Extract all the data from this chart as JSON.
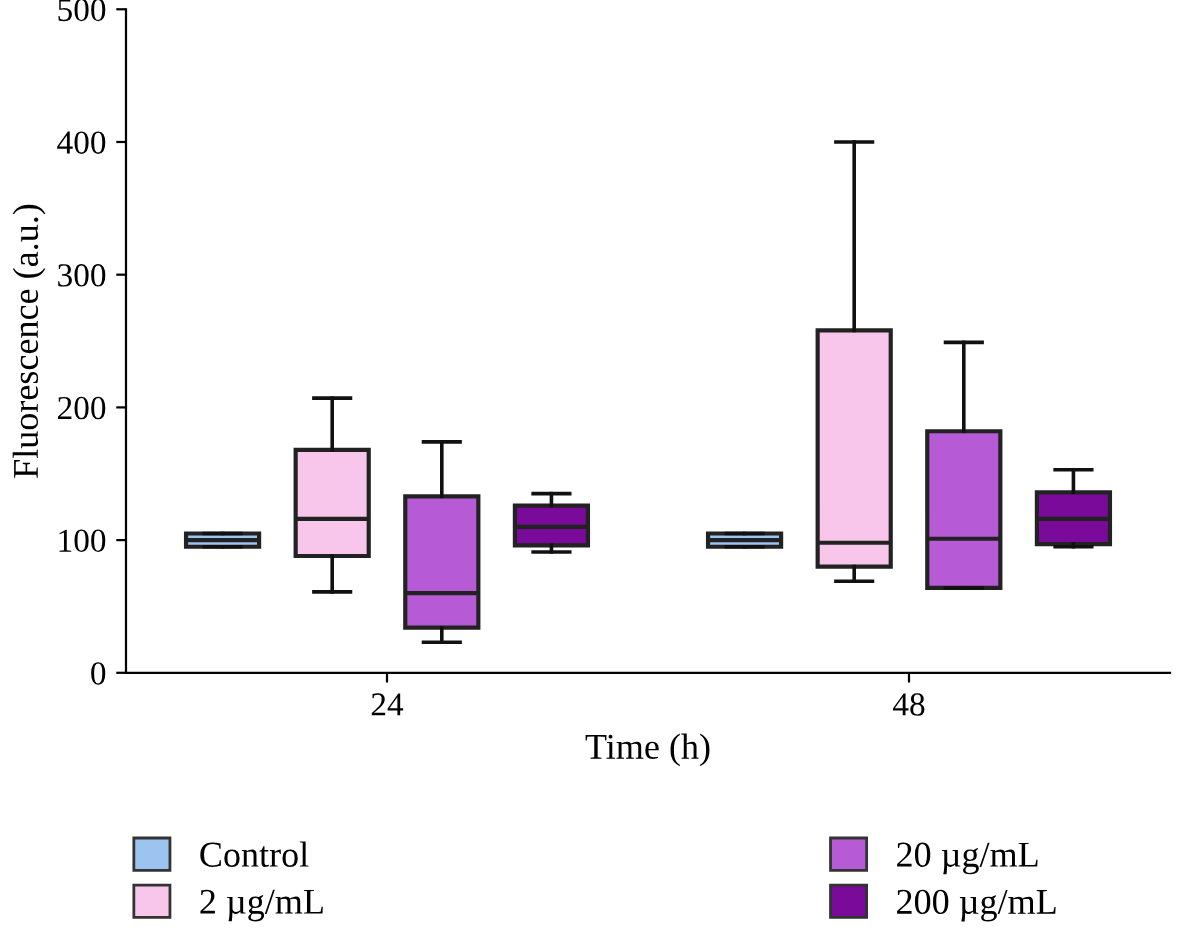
{
  "chart_data": {
    "type": "box",
    "xlabel": "Time (h)",
    "ylabel": "Fluorescence (a.u.)",
    "categories": [
      "24",
      "48"
    ],
    "ylim": [
      0,
      500
    ],
    "yticks": [
      0,
      100,
      200,
      300,
      400,
      500
    ],
    "grid": false,
    "legend": "bottom",
    "series": [
      {
        "name": "Control",
        "color": "#9dc3f0",
        "boxes": [
          {
            "low": 95,
            "q1": 95,
            "median": 100,
            "q3": 105,
            "high": 105
          },
          {
            "low": 95,
            "q1": 95,
            "median": 100,
            "q3": 105,
            "high": 105
          }
        ]
      },
      {
        "name": "2 µg/mL",
        "color": "#f7c6ea",
        "boxes": [
          {
            "low": 61,
            "q1": 88,
            "median": 116,
            "q3": 168,
            "high": 207
          },
          {
            "low": 69,
            "q1": 80,
            "median": 98,
            "q3": 258,
            "high": 400
          }
        ]
      },
      {
        "name": "20 µg/mL",
        "color": "#b65ad6",
        "boxes": [
          {
            "low": 23,
            "q1": 34,
            "median": 60,
            "q3": 133,
            "high": 174
          },
          {
            "low": 64,
            "q1": 64,
            "median": 101,
            "q3": 182,
            "high": 249
          }
        ]
      },
      {
        "name": "200 µg/mL",
        "color": "#7a0a99",
        "boxes": [
          {
            "low": 91,
            "q1": 96,
            "median": 110,
            "q3": 126,
            "high": 135
          },
          {
            "low": 95,
            "q1": 97,
            "median": 116,
            "q3": 136,
            "high": 153
          }
        ]
      }
    ]
  }
}
